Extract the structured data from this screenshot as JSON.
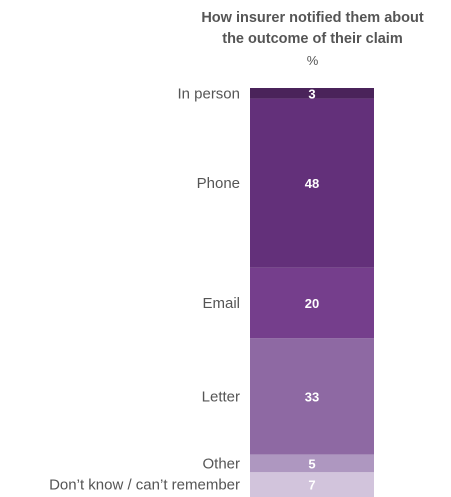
{
  "chart_data": {
    "type": "bar",
    "stacked": true,
    "orientation": "vertical-stack",
    "title_lines": [
      "How insurer notified them about",
      "the outcome of their claim"
    ],
    "unit": "%",
    "categories": [
      "In person",
      "Phone",
      "Email",
      "Letter",
      "Other",
      "Don’t know / can’t remember"
    ],
    "values": [
      3,
      48,
      20,
      33,
      5,
      7
    ],
    "value_labels": [
      "3",
      "48",
      "20",
      "33",
      "5",
      "7"
    ],
    "colors": [
      "#4a235a",
      "#63307a",
      "#753e8c",
      "#8e69a3",
      "#ae97c0",
      "#d2c4dc"
    ]
  }
}
